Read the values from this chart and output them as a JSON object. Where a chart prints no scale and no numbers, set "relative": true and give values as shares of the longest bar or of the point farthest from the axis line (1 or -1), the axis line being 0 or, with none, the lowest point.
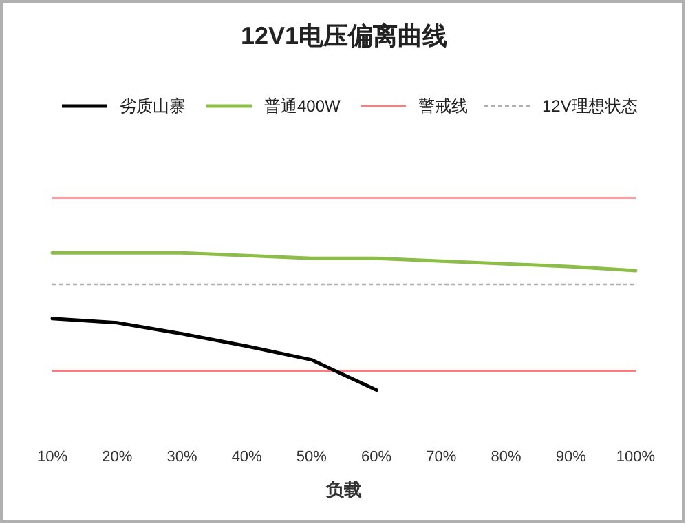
{
  "chart_data": {
    "type": "line",
    "title": "12V1电压偏离曲线",
    "xlabel": "负载",
    "relative": true,
    "legend": "top",
    "line_style": "solid",
    "marker": "none",
    "categories": [
      "10%",
      "20%",
      "30%",
      "40%",
      "50%",
      "60%",
      "70%",
      "80%",
      "90%",
      "100%"
    ],
    "series": [
      {
        "name": "劣质山寨",
        "color": "#000000",
        "values": [
          0.52,
          0.49,
          0.41,
          0.32,
          0.22,
          0,
          null,
          null,
          null,
          null
        ]
      },
      {
        "name": "普通400W",
        "color": "#8cbd48",
        "values": [
          1,
          1,
          1,
          0.98,
          0.96,
          0.96,
          0.94,
          0.92,
          0.9,
          0.87
        ]
      }
    ],
    "ref_lines": [
      {
        "axis": "y",
        "value": 1.4,
        "label": "警戒线",
        "color": "#ff7a7a",
        "line_style": "solid"
      },
      {
        "axis": "y",
        "value": 0.14,
        "color": "#ff7a7a",
        "line_style": "solid"
      },
      {
        "axis": "y",
        "value": 0.77,
        "label": "12V理想状态",
        "color": "#b0b0b0",
        "line_style": "dashed"
      }
    ]
  }
}
